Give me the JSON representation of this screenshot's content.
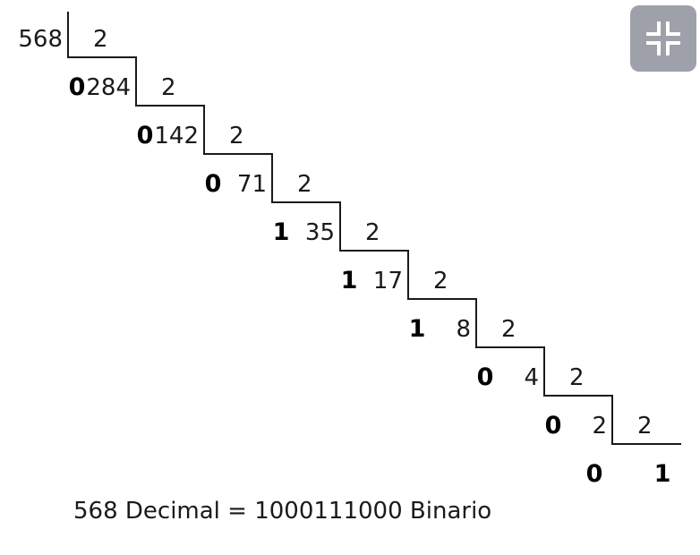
{
  "diagram": {
    "divisor": "2",
    "steps": [
      {
        "dividend": "568",
        "remainder": ""
      },
      {
        "dividend": "284",
        "remainder": "0"
      },
      {
        "dividend": "142",
        "remainder": "0"
      },
      {
        "dividend": "71",
        "remainder": "0"
      },
      {
        "dividend": "35",
        "remainder": "1"
      },
      {
        "dividend": "17",
        "remainder": "1"
      },
      {
        "dividend": "8",
        "remainder": "1"
      },
      {
        "dividend": "4",
        "remainder": "0"
      },
      {
        "dividend": "2",
        "remainder": "0"
      }
    ],
    "final_remainder": "0",
    "final_quotient": "1"
  },
  "caption": "568 Decimal = 1000111000 Binario",
  "controls": {
    "exit_fullscreen_icon": "exit-fullscreen-icon",
    "button_color": "#9ea1a9"
  }
}
